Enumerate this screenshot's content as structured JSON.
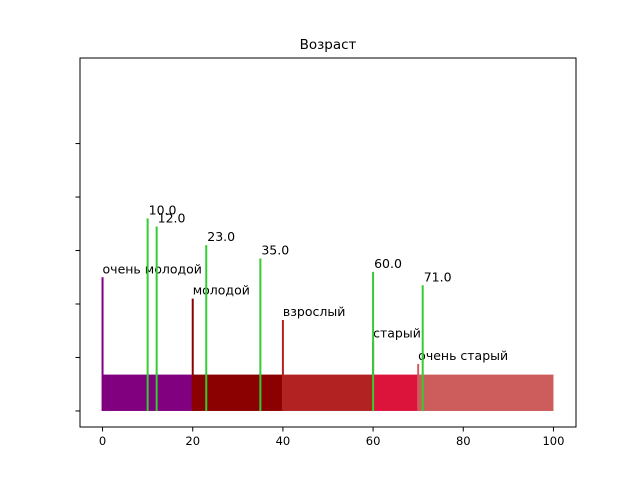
{
  "chart_data": {
    "type": "bar",
    "title": "Возраст",
    "xlabel": "",
    "ylabel": "",
    "xlim": [
      -5,
      105
    ],
    "ylim": [
      -0.3,
      6.6
    ],
    "x_ticks": [
      0,
      20,
      40,
      60,
      80,
      100
    ],
    "x_tick_labels": [
      "0",
      "20",
      "40",
      "60",
      "80",
      "100"
    ],
    "y_ticks": [
      0,
      1,
      2,
      3,
      4,
      5
    ],
    "y_tick_labels": [
      "",
      "",
      "",
      "",
      "",
      ""
    ],
    "grid": false,
    "legend": "none",
    "segments": [
      {
        "label": "очень молодой",
        "start": 0,
        "end": 20,
        "color": "#800080"
      },
      {
        "label": "молодой",
        "start": 20,
        "end": 40,
        "color": "#8b0000"
      },
      {
        "label": "взрослый",
        "start": 40,
        "end": 60,
        "color": "#b22222"
      },
      {
        "label": "старый",
        "start": 60,
        "end": 70,
        "color": "#dc143c"
      },
      {
        "label": "очень старый",
        "start": 70,
        "end": 100,
        "color": "#cd5c5c"
      }
    ],
    "segment_band": [
      0,
      0.68
    ],
    "category_markers": [
      {
        "x": 0,
        "height": 2.5,
        "label": "очень молодой",
        "color": "#800080"
      },
      {
        "x": 20,
        "height": 2.1,
        "label": "молодой",
        "color": "#8b0000"
      },
      {
        "x": 40,
        "height": 1.7,
        "label": "взрослый",
        "color": "#b22222"
      },
      {
        "x": 60,
        "height": 1.3,
        "label": "старый",
        "color": "#dc143c"
      },
      {
        "x": 70,
        "height": 0.88,
        "label": "очень старый",
        "color": "#cd5c5c"
      }
    ],
    "value_markers": [
      {
        "x": 10,
        "height": 3.6,
        "label": "10.0",
        "color": "#32cd32"
      },
      {
        "x": 12,
        "height": 3.45,
        "label": "12.0",
        "color": "#32cd32"
      },
      {
        "x": 23,
        "height": 3.1,
        "label": "23.0",
        "color": "#32cd32"
      },
      {
        "x": 35,
        "height": 2.85,
        "label": "35.0",
        "color": "#32cd32"
      },
      {
        "x": 60,
        "height": 2.6,
        "label": "60.0",
        "color": "#32cd32"
      },
      {
        "x": 71,
        "height": 2.35,
        "label": "71.0",
        "color": "#32cd32"
      }
    ]
  }
}
